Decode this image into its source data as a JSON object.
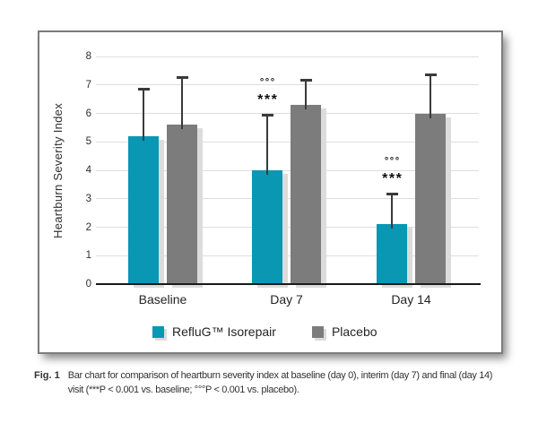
{
  "chart_data": {
    "type": "bar",
    "title": "",
    "ylabel": "Heartburn Severity Index",
    "xlabel": "",
    "ylim": [
      0,
      8
    ],
    "yticks": [
      0,
      1,
      2,
      3,
      4,
      5,
      6,
      7,
      8
    ],
    "categories": [
      "Baseline",
      "Day 7",
      "Day 14"
    ],
    "grid": true,
    "legend_position": "bottom-center",
    "series": [
      {
        "name": "RefluG™ Isorepair",
        "color": "#0997B4",
        "values": [
          5.2,
          4.0,
          2.1
        ],
        "error_upper_to": [
          6.9,
          6.0,
          3.2
        ],
        "sig_markers": [
          [],
          [
            "°°°",
            "***"
          ],
          [
            "°°°",
            "***"
          ]
        ]
      },
      {
        "name": "Placebo",
        "color": "#7C7C7C",
        "values": [
          5.6,
          6.3,
          6.0
        ],
        "error_upper_to": [
          7.3,
          7.2,
          7.4
        ],
        "sig_markers": [
          [],
          [],
          []
        ]
      }
    ]
  },
  "caption": {
    "label": "Fig. 1",
    "line1": "Bar chart for comparison of heartburn severity index at baseline (day 0), interim (day 7) and final (day 14)",
    "line2": "visit (***P < 0.001 vs. baseline; °°°P < 0.001 vs. placebo)."
  },
  "colors": {
    "teal": "#0997B4",
    "gray": "#7C7C7C",
    "bar_shadow": "#DCDCDC",
    "gridline": "#DEDEDE",
    "axis": "#1A1A1A",
    "error_bar": "#3A3A3A",
    "box_border": "#7C7C7C",
    "text": "#2E2E2E"
  }
}
